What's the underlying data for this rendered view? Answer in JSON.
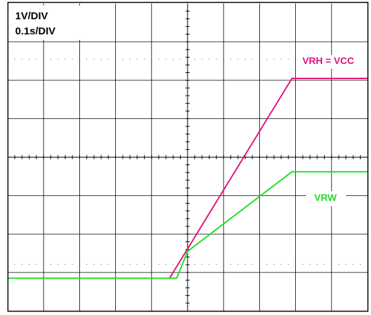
{
  "chart_data": {
    "type": "line",
    "title": "",
    "scale": {
      "volts_per_div": "1V/DIV",
      "time_per_div": "0.1s/DIV"
    },
    "grid": true,
    "x_divisions": 10,
    "y_divisions": 8,
    "xlabel": "",
    "ylabel": "",
    "xlim": [
      0,
      1.0
    ],
    "ylim": [
      0,
      8
    ],
    "series": [
      {
        "name": "VRH = VCC",
        "color": "#e0147c",
        "x": [
          0,
          0.45,
          0.79,
          1.0
        ],
        "y": [
          0.85,
          0.85,
          6.05,
          6.05
        ]
      },
      {
        "name": "VRW",
        "color": "#22dd22",
        "x": [
          0,
          0.47,
          0.5,
          0.79,
          1.0
        ],
        "y": [
          0.85,
          0.85,
          1.55,
          3.62,
          3.62
        ]
      }
    ]
  }
}
